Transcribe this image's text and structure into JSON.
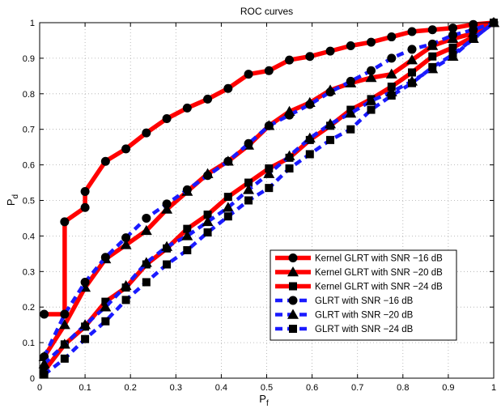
{
  "chart_data": {
    "type": "line",
    "title": "ROC curves",
    "xlabel": {
      "main": "P",
      "sub": "f"
    },
    "ylabel": {
      "main": "P",
      "sub": "d"
    },
    "xlim": [
      0,
      1
    ],
    "ylim": [
      0,
      1
    ],
    "xticks": [
      "0",
      "0.1",
      "0.2",
      "0.3",
      "0.4",
      "0.5",
      "0.6",
      "0.7",
      "0.8",
      "0.9",
      "1"
    ],
    "yticks": [
      "0",
      "0.1",
      "0.2",
      "0.3",
      "0.4",
      "0.5",
      "0.6",
      "0.7",
      "0.8",
      "0.9",
      "1"
    ],
    "grid": true,
    "legend_position": "lower-right",
    "series": [
      {
        "name": "Kernel GLRT with SNR −16 dB",
        "color": "#ff0000",
        "style": "solid",
        "marker": "circle",
        "points": [
          [
            0.01,
            0.18
          ],
          [
            0.055,
            0.18
          ],
          [
            0.055,
            0.44
          ],
          [
            0.1,
            0.48
          ],
          [
            0.1,
            0.525
          ],
          [
            0.145,
            0.61
          ],
          [
            0.19,
            0.645
          ],
          [
            0.235,
            0.69
          ],
          [
            0.28,
            0.73
          ],
          [
            0.325,
            0.76
          ],
          [
            0.37,
            0.785
          ],
          [
            0.415,
            0.815
          ],
          [
            0.46,
            0.855
          ],
          [
            0.505,
            0.865
          ],
          [
            0.55,
            0.895
          ],
          [
            0.595,
            0.905
          ],
          [
            0.64,
            0.92
          ],
          [
            0.685,
            0.935
          ],
          [
            0.73,
            0.945
          ],
          [
            0.775,
            0.96
          ],
          [
            0.82,
            0.975
          ],
          [
            0.865,
            0.98
          ],
          [
            0.91,
            0.985
          ],
          [
            0.955,
            0.995
          ],
          [
            1.0,
            1.0
          ]
        ]
      },
      {
        "name": "Kernel GLRT with SNR −20 dB",
        "color": "#ff0000",
        "style": "solid",
        "marker": "triangle",
        "points": [
          [
            0.01,
            0.06
          ],
          [
            0.055,
            0.15
          ],
          [
            0.1,
            0.255
          ],
          [
            0.145,
            0.335
          ],
          [
            0.19,
            0.375
          ],
          [
            0.235,
            0.415
          ],
          [
            0.28,
            0.475
          ],
          [
            0.325,
            0.525
          ],
          [
            0.37,
            0.575
          ],
          [
            0.415,
            0.61
          ],
          [
            0.46,
            0.655
          ],
          [
            0.505,
            0.71
          ],
          [
            0.55,
            0.75
          ],
          [
            0.595,
            0.775
          ],
          [
            0.64,
            0.81
          ],
          [
            0.685,
            0.83
          ],
          [
            0.73,
            0.845
          ],
          [
            0.775,
            0.855
          ],
          [
            0.82,
            0.895
          ],
          [
            0.865,
            0.935
          ],
          [
            0.91,
            0.955
          ],
          [
            0.955,
            0.97
          ],
          [
            1.0,
            1.0
          ]
        ]
      },
      {
        "name": "Kernel GLRT with SNR −24 dB",
        "color": "#ff0000",
        "style": "solid",
        "marker": "square",
        "points": [
          [
            0.01,
            0.02
          ],
          [
            0.055,
            0.095
          ],
          [
            0.1,
            0.145
          ],
          [
            0.145,
            0.215
          ],
          [
            0.19,
            0.255
          ],
          [
            0.235,
            0.32
          ],
          [
            0.28,
            0.365
          ],
          [
            0.325,
            0.42
          ],
          [
            0.37,
            0.46
          ],
          [
            0.415,
            0.51
          ],
          [
            0.46,
            0.55
          ],
          [
            0.505,
            0.59
          ],
          [
            0.55,
            0.62
          ],
          [
            0.595,
            0.67
          ],
          [
            0.64,
            0.71
          ],
          [
            0.685,
            0.755
          ],
          [
            0.73,
            0.785
          ],
          [
            0.775,
            0.82
          ],
          [
            0.82,
            0.86
          ],
          [
            0.865,
            0.905
          ],
          [
            0.91,
            0.93
          ],
          [
            0.955,
            0.96
          ],
          [
            1.0,
            1.0
          ]
        ]
      },
      {
        "name": "GLRT with SNR −16 dB",
        "color": "#1a1aff",
        "style": "dashed",
        "marker": "circle",
        "points": [
          [
            0.01,
            0.06
          ],
          [
            0.055,
            0.18
          ],
          [
            0.1,
            0.27
          ],
          [
            0.145,
            0.34
          ],
          [
            0.19,
            0.395
          ],
          [
            0.235,
            0.45
          ],
          [
            0.28,
            0.49
          ],
          [
            0.325,
            0.53
          ],
          [
            0.37,
            0.57
          ],
          [
            0.415,
            0.61
          ],
          [
            0.46,
            0.66
          ],
          [
            0.505,
            0.71
          ],
          [
            0.55,
            0.74
          ],
          [
            0.595,
            0.77
          ],
          [
            0.64,
            0.805
          ],
          [
            0.685,
            0.835
          ],
          [
            0.73,
            0.865
          ],
          [
            0.775,
            0.9
          ],
          [
            0.82,
            0.925
          ],
          [
            0.865,
            0.94
          ],
          [
            0.91,
            0.965
          ],
          [
            0.955,
            0.98
          ],
          [
            1.0,
            1.0
          ]
        ]
      },
      {
        "name": "GLRT with SNR −20 dB",
        "color": "#1a1aff",
        "style": "dashed",
        "marker": "triangle",
        "points": [
          [
            0.01,
            0.04
          ],
          [
            0.055,
            0.095
          ],
          [
            0.1,
            0.15
          ],
          [
            0.145,
            0.2
          ],
          [
            0.19,
            0.26
          ],
          [
            0.235,
            0.325
          ],
          [
            0.28,
            0.37
          ],
          [
            0.325,
            0.4
          ],
          [
            0.37,
            0.44
          ],
          [
            0.415,
            0.48
          ],
          [
            0.46,
            0.53
          ],
          [
            0.505,
            0.575
          ],
          [
            0.55,
            0.625
          ],
          [
            0.595,
            0.675
          ],
          [
            0.64,
            0.715
          ],
          [
            0.685,
            0.745
          ],
          [
            0.73,
            0.78
          ],
          [
            0.775,
            0.805
          ],
          [
            0.82,
            0.835
          ],
          [
            0.865,
            0.87
          ],
          [
            0.91,
            0.905
          ],
          [
            0.955,
            0.955
          ],
          [
            1.0,
            1.0
          ]
        ]
      },
      {
        "name": "GLRT with SNR −24 dB",
        "color": "#1a1aff",
        "style": "dashed",
        "marker": "square",
        "points": [
          [
            0.01,
            0.01
          ],
          [
            0.055,
            0.055
          ],
          [
            0.1,
            0.11
          ],
          [
            0.145,
            0.16
          ],
          [
            0.19,
            0.22
          ],
          [
            0.235,
            0.27
          ],
          [
            0.28,
            0.32
          ],
          [
            0.325,
            0.36
          ],
          [
            0.37,
            0.41
          ],
          [
            0.415,
            0.455
          ],
          [
            0.46,
            0.5
          ],
          [
            0.505,
            0.535
          ],
          [
            0.55,
            0.59
          ],
          [
            0.595,
            0.63
          ],
          [
            0.64,
            0.67
          ],
          [
            0.685,
            0.7
          ],
          [
            0.73,
            0.755
          ],
          [
            0.775,
            0.795
          ],
          [
            0.82,
            0.83
          ],
          [
            0.865,
            0.875
          ],
          [
            0.91,
            0.91
          ],
          [
            0.955,
            0.955
          ],
          [
            1.0,
            1.0
          ]
        ]
      }
    ]
  }
}
